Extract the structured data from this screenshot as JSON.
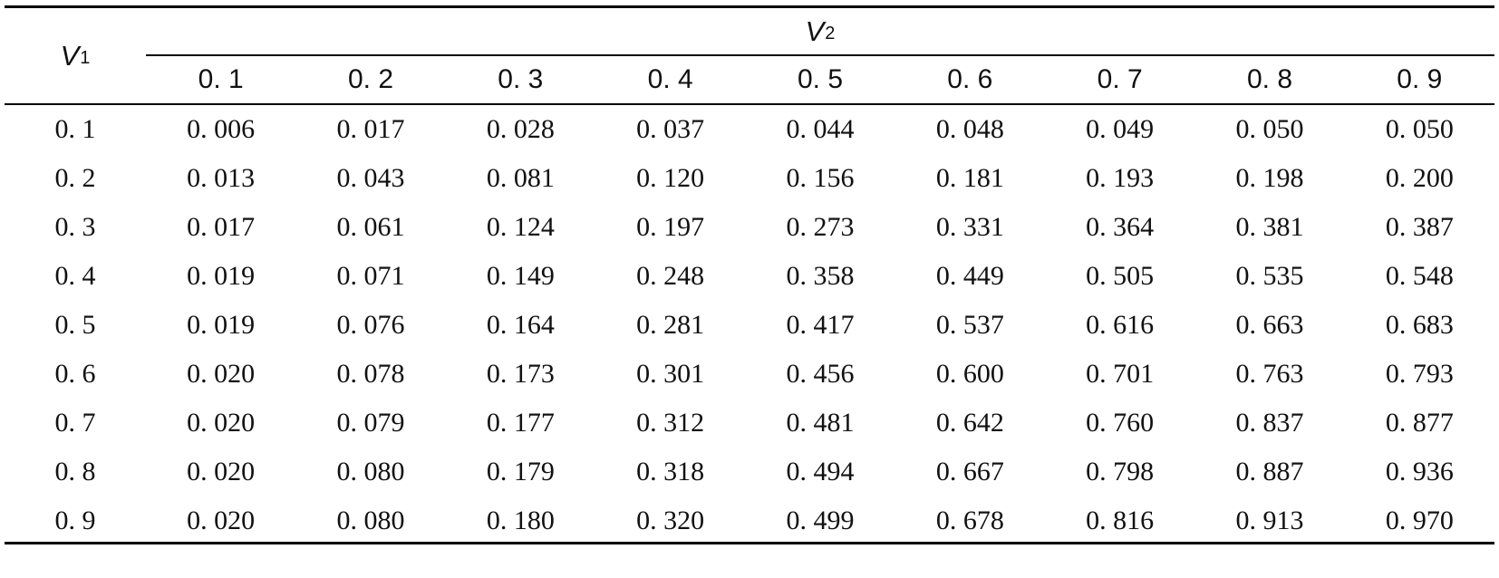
{
  "table": {
    "row_header": {
      "symbol": "V",
      "subscript": "1"
    },
    "col_header": {
      "symbol": "V",
      "subscript": "2"
    },
    "columns": [
      "0. 1",
      "0. 2",
      "0. 3",
      "0. 4",
      "0. 5",
      "0. 6",
      "0. 7",
      "0. 8",
      "0. 9"
    ],
    "rows": [
      {
        "label": "0. 1",
        "values": [
          "0. 006",
          "0. 017",
          "0. 028",
          "0. 037",
          "0. 044",
          "0. 048",
          "0. 049",
          "0. 050",
          "0. 050"
        ]
      },
      {
        "label": "0. 2",
        "values": [
          "0. 013",
          "0. 043",
          "0. 081",
          "0. 120",
          "0. 156",
          "0. 181",
          "0. 193",
          "0. 198",
          "0. 200"
        ]
      },
      {
        "label": "0. 3",
        "values": [
          "0. 017",
          "0. 061",
          "0. 124",
          "0. 197",
          "0. 273",
          "0. 331",
          "0. 364",
          "0. 381",
          "0. 387"
        ]
      },
      {
        "label": "0. 4",
        "values": [
          "0. 019",
          "0. 071",
          "0. 149",
          "0. 248",
          "0. 358",
          "0. 449",
          "0. 505",
          "0. 535",
          "0. 548"
        ]
      },
      {
        "label": "0. 5",
        "values": [
          "0. 019",
          "0. 076",
          "0. 164",
          "0. 281",
          "0. 417",
          "0. 537",
          "0. 616",
          "0. 663",
          "0. 683"
        ]
      },
      {
        "label": "0. 6",
        "values": [
          "0. 020",
          "0. 078",
          "0. 173",
          "0. 301",
          "0. 456",
          "0. 600",
          "0. 701",
          "0. 763",
          "0. 793"
        ]
      },
      {
        "label": "0. 7",
        "values": [
          "0. 020",
          "0. 079",
          "0. 177",
          "0. 312",
          "0. 481",
          "0. 642",
          "0. 760",
          "0. 837",
          "0. 877"
        ]
      },
      {
        "label": "0. 8",
        "values": [
          "0. 020",
          "0. 080",
          "0. 179",
          "0. 318",
          "0. 494",
          "0. 667",
          "0. 798",
          "0. 887",
          "0. 936"
        ]
      },
      {
        "label": "0. 9",
        "values": [
          "0. 020",
          "0. 080",
          "0. 180",
          "0. 320",
          "0. 499",
          "0. 678",
          "0. 816",
          "0. 913",
          "0. 970"
        ]
      }
    ]
  }
}
